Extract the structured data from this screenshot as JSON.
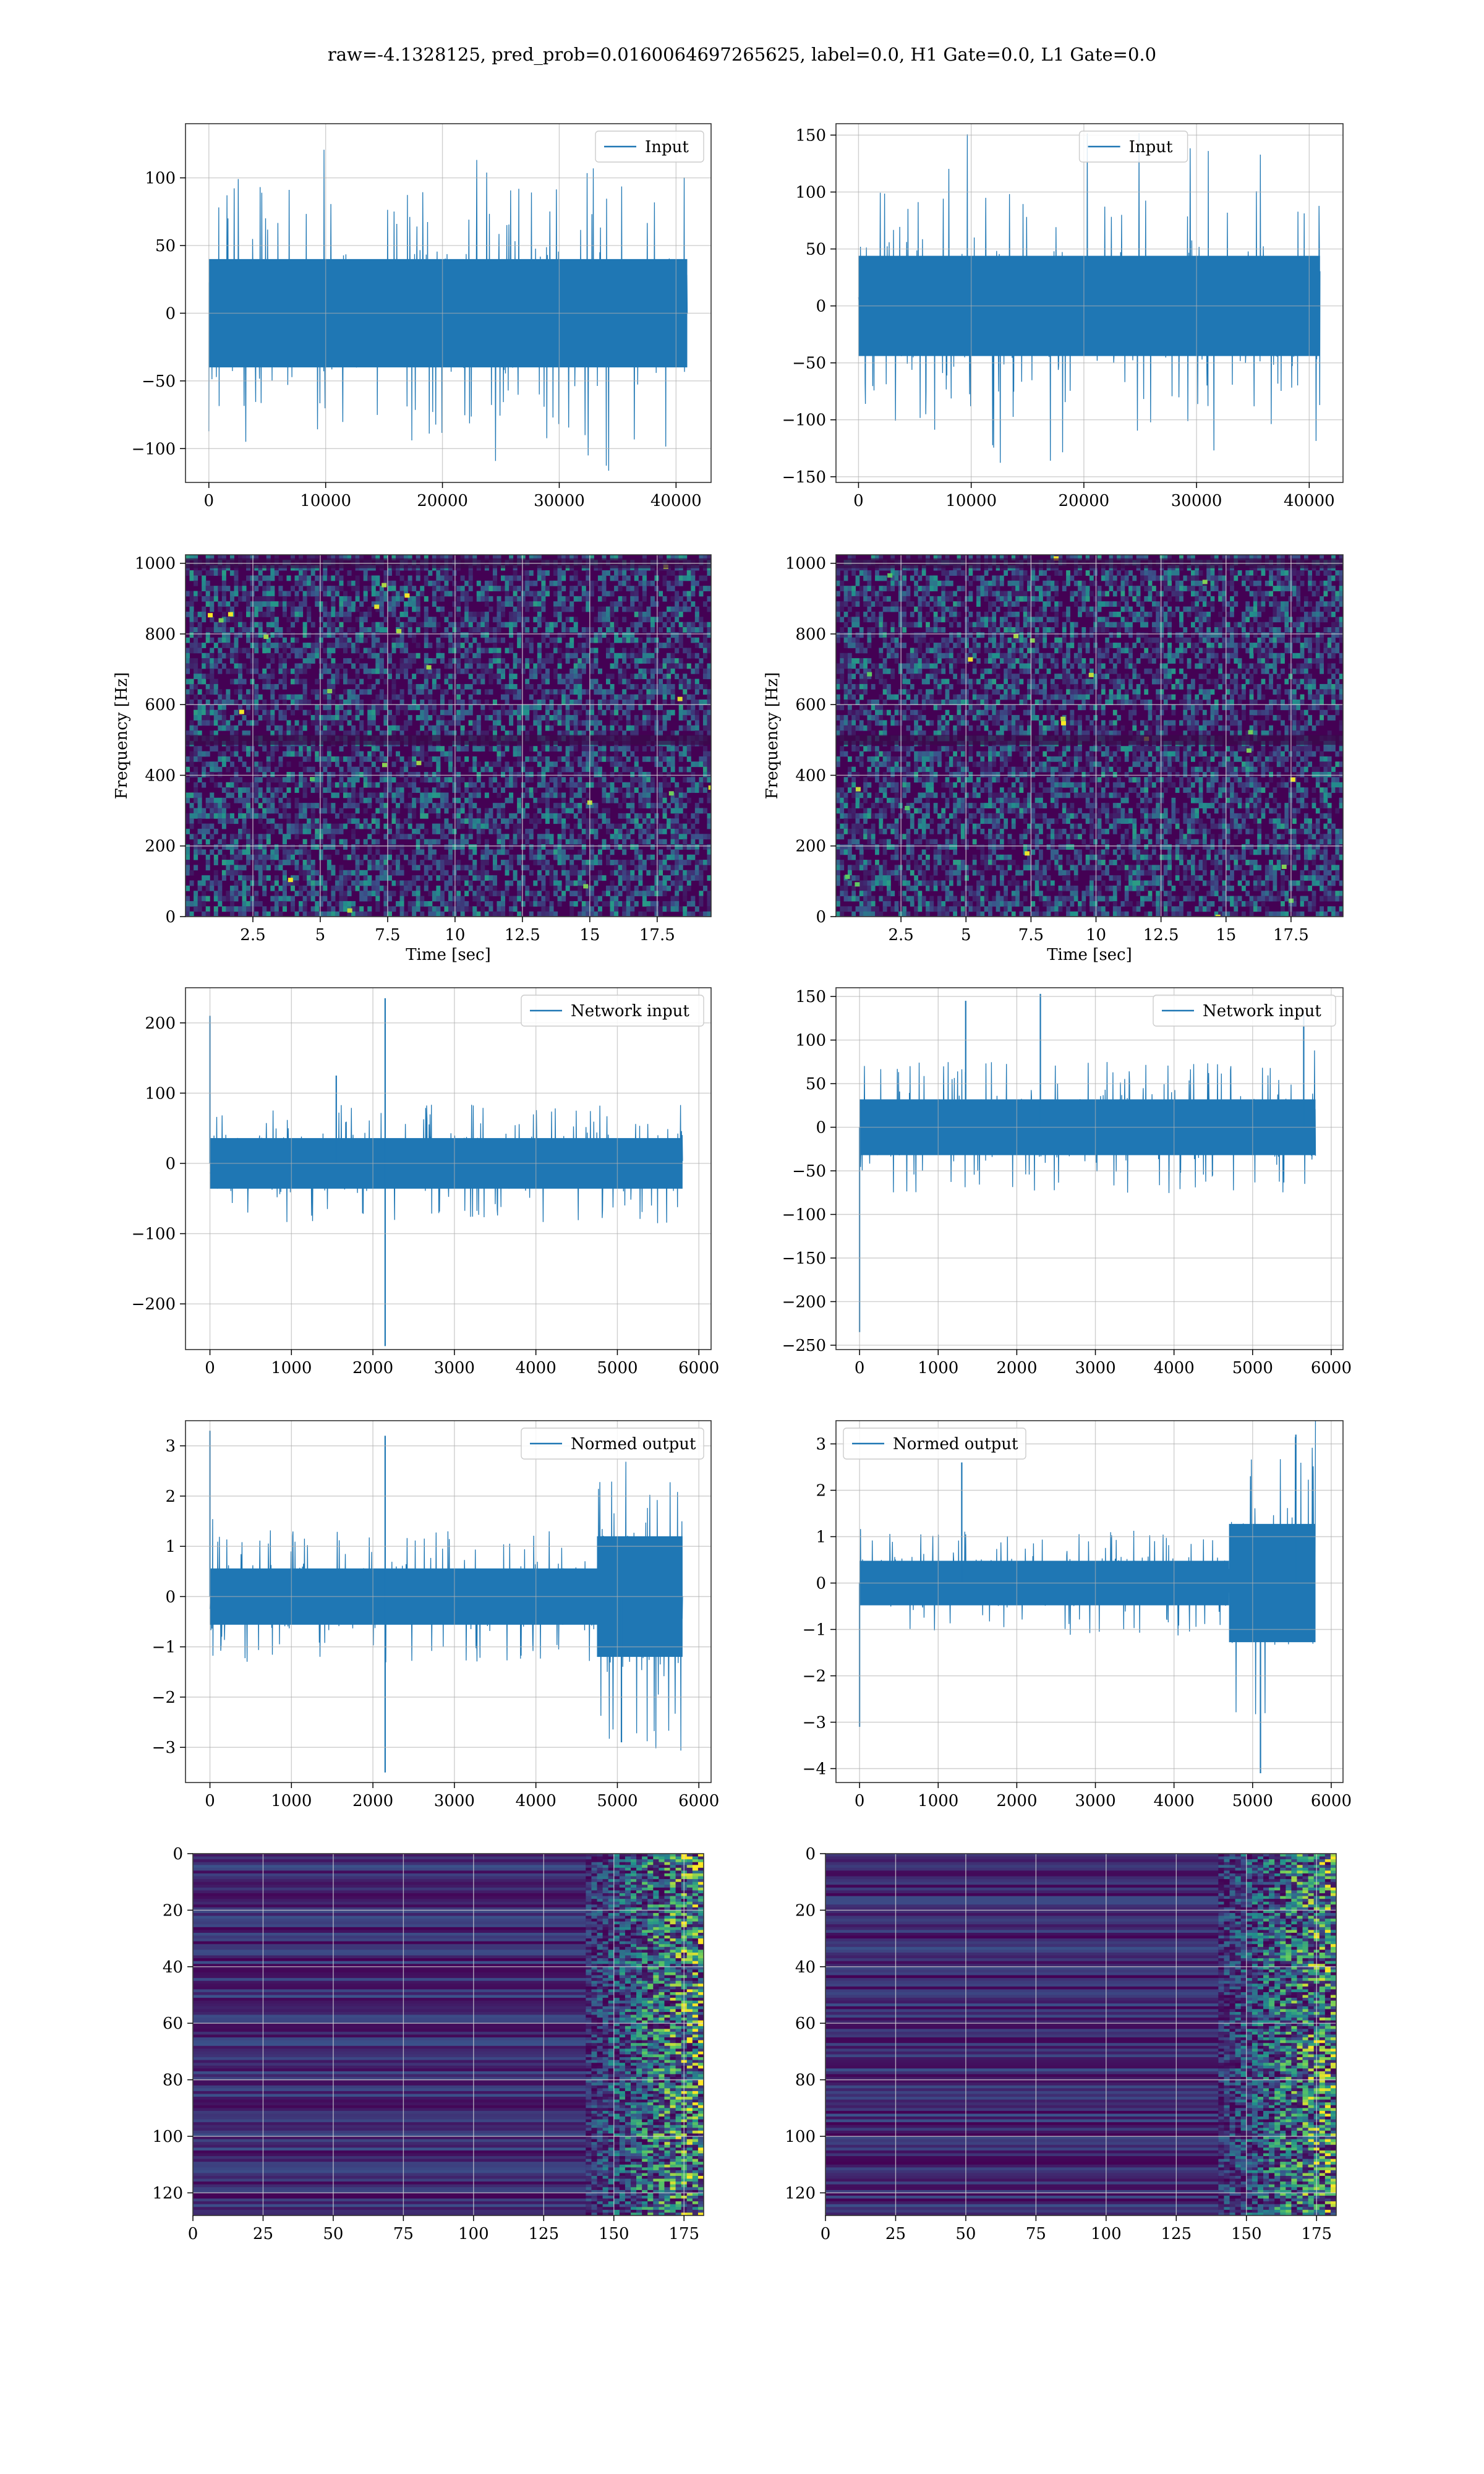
{
  "figure": {
    "suptitle": "raw=-4.1328125, pred_prob=0.0160064697265625, label=0.0, H1 Gate=0.0, L1 Gate=0.0"
  },
  "colors": {
    "line": "#1f77b4",
    "grid": "#b0b0b0",
    "frame": "#333333",
    "viridis_low": "#440154",
    "viridis_mid": "#21918c",
    "viridis_high": "#fde725"
  },
  "chart_data": [
    {
      "id": "h1-input",
      "type": "line",
      "legend": "Input",
      "legend_position": "upper right",
      "xlim": [
        -2000,
        43000
      ],
      "ylim": [
        -125,
        140
      ],
      "xticks": [
        0,
        10000,
        20000,
        30000,
        40000
      ],
      "yticks": [
        -100,
        -50,
        0,
        50,
        100
      ],
      "grid": true,
      "signal": {
        "n": 40960,
        "core_amplitude": 50,
        "peak_max": 130,
        "peak_min": -120
      }
    },
    {
      "id": "l1-input",
      "type": "line",
      "legend": "Input",
      "legend_position": "upper center",
      "xlim": [
        -2000,
        43000
      ],
      "ylim": [
        -155,
        160
      ],
      "xticks": [
        0,
        10000,
        20000,
        30000,
        40000
      ],
      "yticks": [
        -150,
        -100,
        -50,
        0,
        50,
        100,
        150
      ],
      "grid": true,
      "signal": {
        "n": 40960,
        "core_amplitude": 55,
        "peak_max": 153,
        "peak_min": -142
      }
    },
    {
      "id": "h1-spectrogram",
      "type": "heatmap",
      "colormap": "viridis",
      "xlim": [
        0,
        19.5
      ],
      "ylim": [
        0,
        1024
      ],
      "xticks": [
        2.5,
        5.0,
        7.5,
        10.0,
        12.5,
        15.0,
        17.5
      ],
      "yticks": [
        0,
        200,
        400,
        600,
        800,
        1000
      ],
      "xlabel": "Time [sec]",
      "ylabel": "Frequency [Hz]",
      "grid": true,
      "dark_bands_hz": [
        500,
        1000
      ]
    },
    {
      "id": "l1-spectrogram",
      "type": "heatmap",
      "colormap": "viridis",
      "xlim": [
        0,
        19.5
      ],
      "ylim": [
        0,
        1024
      ],
      "xticks": [
        2.5,
        5.0,
        7.5,
        10.0,
        12.5,
        15.0,
        17.5
      ],
      "yticks": [
        0,
        200,
        400,
        600,
        800,
        1000
      ],
      "xlabel": "Time [sec]",
      "ylabel": "Frequency [Hz]",
      "grid": true,
      "dark_bands_hz": [
        500,
        1000
      ]
    },
    {
      "id": "h1-network-input",
      "type": "line",
      "legend": "Network input",
      "legend_position": "upper right",
      "xlim": [
        -300,
        6150
      ],
      "ylim": [
        -265,
        250
      ],
      "xticks": [
        0,
        1000,
        2000,
        3000,
        4000,
        5000,
        6000
      ],
      "yticks": [
        -200,
        -100,
        0,
        100,
        200
      ],
      "grid": true,
      "signal": {
        "n": 5800,
        "core_amplitude": 45,
        "spikes": [
          [
            0,
            210
          ],
          [
            2150,
            235
          ],
          [
            2150,
            -260
          ],
          [
            1550,
            125
          ]
        ]
      }
    },
    {
      "id": "l1-network-input",
      "type": "line",
      "legend": "Network input",
      "legend_position": "upper right",
      "xlim": [
        -300,
        6150
      ],
      "ylim": [
        -255,
        160
      ],
      "xticks": [
        0,
        1000,
        2000,
        3000,
        4000,
        5000,
        6000
      ],
      "yticks": [
        -250,
        -200,
        -150,
        -100,
        -50,
        0,
        50,
        100,
        150
      ],
      "grid": true,
      "signal": {
        "n": 5800,
        "core_amplitude": 40,
        "spikes": [
          [
            0,
            -235
          ],
          [
            2300,
            153
          ],
          [
            1350,
            145
          ],
          [
            5650,
            130
          ]
        ]
      }
    },
    {
      "id": "h1-normed-output",
      "type": "line",
      "legend": "Normed output",
      "legend_position": "upper right",
      "xlim": [
        -300,
        6150
      ],
      "ylim": [
        -3.7,
        3.5
      ],
      "xticks": [
        0,
        1000,
        2000,
        3000,
        4000,
        5000,
        6000
      ],
      "yticks": [
        -3,
        -2,
        -1,
        0,
        1,
        2,
        3
      ],
      "grid": true,
      "signal": {
        "n": 5800,
        "core_amplitude": 0.7,
        "loud_from": 4750,
        "loud_amplitude": 1.6,
        "spikes": [
          [
            0,
            3.3
          ],
          [
            2150,
            3.2
          ],
          [
            2150,
            -3.5
          ],
          [
            5050,
            -2.9
          ]
        ]
      }
    },
    {
      "id": "l1-normed-output",
      "type": "line",
      "legend": "Normed output",
      "legend_position": "upper left",
      "xlim": [
        -300,
        6150
      ],
      "ylim": [
        -4.3,
        3.5
      ],
      "xticks": [
        0,
        1000,
        2000,
        3000,
        4000,
        5000,
        6000
      ],
      "yticks": [
        -4,
        -3,
        -2,
        -1,
        0,
        1,
        2,
        3
      ],
      "grid": true,
      "signal": {
        "n": 5800,
        "core_amplitude": 0.6,
        "loud_from": 4700,
        "loud_amplitude": 1.7,
        "spikes": [
          [
            0,
            -3.1
          ],
          [
            5100,
            -4.1
          ],
          [
            5550,
            3.2
          ],
          [
            1300,
            2.6
          ]
        ]
      }
    },
    {
      "id": "h1-feature-map",
      "type": "heatmap",
      "colormap": "viridis",
      "xlim": [
        0,
        182
      ],
      "ylim": [
        128,
        0
      ],
      "xticks": [
        0,
        25,
        50,
        75,
        100,
        125,
        150,
        175
      ],
      "yticks": [
        0,
        20,
        40,
        60,
        80,
        100,
        120
      ],
      "grid": true,
      "active_from_x": 140
    },
    {
      "id": "l1-feature-map",
      "type": "heatmap",
      "colormap": "viridis",
      "xlim": [
        0,
        182
      ],
      "ylim": [
        128,
        0
      ],
      "xticks": [
        0,
        25,
        50,
        75,
        100,
        125,
        150,
        175
      ],
      "yticks": [
        0,
        20,
        40,
        60,
        80,
        100,
        120
      ],
      "grid": true,
      "active_from_x": 140
    }
  ]
}
